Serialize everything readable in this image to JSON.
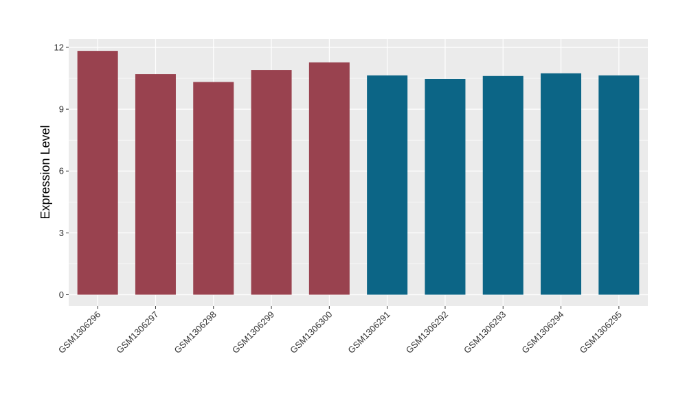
{
  "chart_data": {
    "type": "bar",
    "ylabel": "Expression Level",
    "xlabel": "",
    "ylim": [
      -0.55,
      12.4
    ],
    "yticks": [
      0,
      3,
      6,
      9,
      12
    ],
    "grid": true,
    "categories": [
      "GSM1306296",
      "GSM1306297",
      "GSM1306298",
      "GSM1306299",
      "GSM1306300",
      "GSM1306291",
      "GSM1306292",
      "GSM1306293",
      "GSM1306294",
      "GSM1306295"
    ],
    "values": [
      11.83,
      10.7,
      10.32,
      10.9,
      11.27,
      10.64,
      10.47,
      10.61,
      10.74,
      10.64
    ],
    "colors": [
      "#99424f",
      "#99424f",
      "#99424f",
      "#99424f",
      "#99424f",
      "#0c6586",
      "#0c6586",
      "#0c6586",
      "#0c6586",
      "#0c6586"
    ],
    "panel_background": "#ebebeb",
    "grid_color": "#ffffff"
  }
}
